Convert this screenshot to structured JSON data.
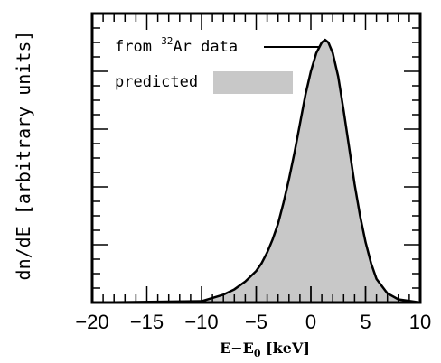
{
  "chart_data": {
    "type": "area",
    "xlabel_main": "E−E",
    "xlabel_sub": "0",
    "xlabel_unit": " [keV]",
    "ylabel": "dn/dE [arbitrary units]",
    "xlim": [
      -20,
      10
    ],
    "ylim": [
      0,
      1.1
    ],
    "x_ticks": [
      -20,
      -15,
      -10,
      -5,
      0,
      5,
      10
    ],
    "x_tick_labels": [
      "−20",
      "−15",
      "−10",
      "−5",
      "0",
      "5",
      "10"
    ],
    "x_minor_step": 1,
    "y_major_count": 5,
    "y_minor_per_major": 4,
    "legend": {
      "data_label_pre": "from ",
      "data_label_sup": "32",
      "data_label_post": "Ar data",
      "predicted_label": "predicted"
    },
    "series": [
      {
        "name": "from 32Ar data",
        "style": "line",
        "color": "#000000",
        "x": [
          -20,
          -10,
          -8,
          -7,
          -6,
          -5,
          -4.5,
          -4,
          -3.5,
          -3,
          -2.5,
          -2,
          -1.5,
          -1,
          -0.5,
          0,
          0.5,
          1,
          1.3,
          1.6,
          2,
          2.5,
          3,
          3.5,
          4,
          4.5,
          5,
          5.5,
          6,
          7,
          8,
          10
        ],
        "y": [
          0,
          0.005,
          0.03,
          0.05,
          0.08,
          0.12,
          0.15,
          0.19,
          0.24,
          0.3,
          0.38,
          0.47,
          0.57,
          0.68,
          0.79,
          0.88,
          0.95,
          0.99,
          1.0,
          0.99,
          0.95,
          0.86,
          0.73,
          0.59,
          0.45,
          0.33,
          0.23,
          0.15,
          0.09,
          0.035,
          0.012,
          0
        ]
      },
      {
        "name": "predicted",
        "style": "area",
        "color": "#c8c8c8",
        "x": [
          -20,
          -10,
          -8,
          -7,
          -6,
          -5,
          -4.5,
          -4,
          -3.5,
          -3,
          -2.5,
          -2,
          -1.5,
          -1,
          -0.5,
          0,
          0.5,
          1,
          1.3,
          1.6,
          2,
          2.5,
          3,
          3.5,
          4,
          4.5,
          5,
          5.5,
          6,
          7,
          8,
          10
        ],
        "y": [
          0,
          0.005,
          0.03,
          0.05,
          0.08,
          0.12,
          0.15,
          0.19,
          0.24,
          0.3,
          0.38,
          0.47,
          0.57,
          0.68,
          0.79,
          0.88,
          0.95,
          0.99,
          1.0,
          0.99,
          0.95,
          0.86,
          0.73,
          0.59,
          0.45,
          0.33,
          0.23,
          0.15,
          0.09,
          0.035,
          0.012,
          0
        ]
      }
    ]
  }
}
